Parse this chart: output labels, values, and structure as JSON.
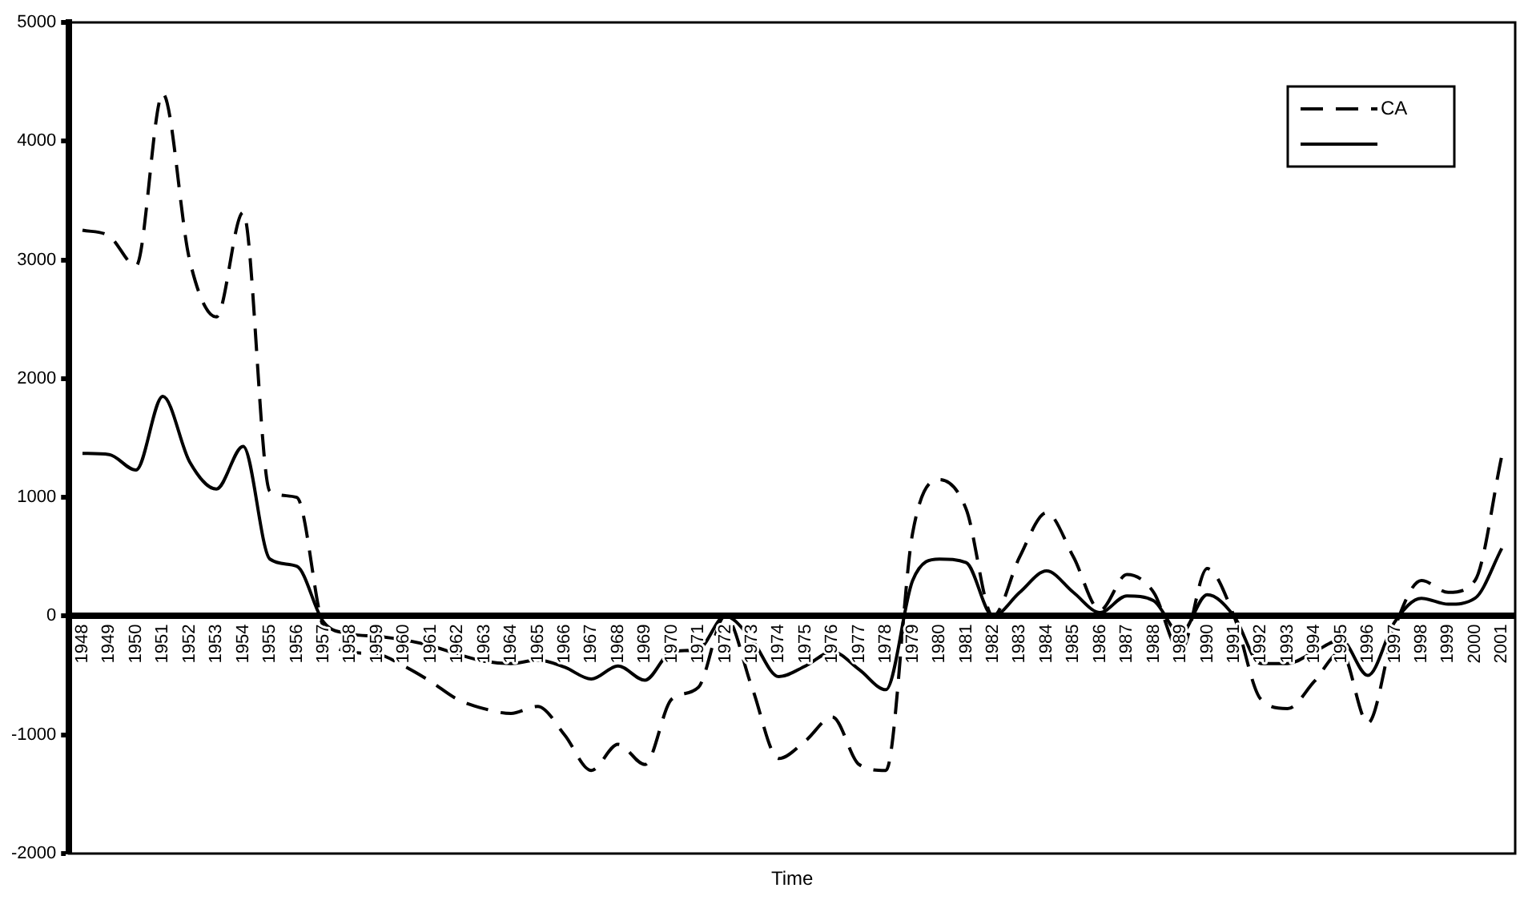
{
  "chart_data": {
    "type": "line",
    "xlabel": "Time",
    "categories": [
      "1948",
      "1949",
      "1950",
      "1951",
      "1952",
      "1953",
      "1954",
      "1955",
      "1956",
      "1957",
      "1958",
      "1959",
      "1960",
      "1961",
      "1962",
      "1963",
      "1964",
      "1965",
      "1966",
      "1967",
      "1968",
      "1969",
      "1970",
      "1971",
      "1972",
      "1973",
      "1974",
      "1975",
      "1976",
      "1977",
      "1978",
      "1979",
      "1980",
      "1981",
      "1982",
      "1983",
      "1984",
      "1985",
      "1986",
      "1987",
      "1988",
      "1989",
      "1990",
      "1991",
      "1992",
      "1993",
      "1994",
      "1995",
      "1996",
      "1997",
      "1998",
      "1999",
      "2000",
      "2001"
    ],
    "series": [
      {
        "name": "CA",
        "color": "#000000",
        "line_style": "dashed",
        "values": [
          3250,
          3200,
          2950,
          4400,
          3000,
          2520,
          3400,
          1050,
          1000,
          -100,
          -300,
          -320,
          -420,
          -550,
          -700,
          -780,
          -820,
          -760,
          -1000,
          -1300,
          -1080,
          -1250,
          -700,
          -600,
          0,
          -600,
          -1200,
          -1050,
          -850,
          -1250,
          -1300,
          700,
          1150,
          900,
          0,
          500,
          870,
          500,
          50,
          350,
          200,
          -300,
          400,
          0,
          -700,
          -780,
          -550,
          -300,
          -900,
          -100,
          300,
          200,
          300,
          1350
        ]
      },
      {
        "color": "#000000",
        "line_style": "solid",
        "values": [
          1370,
          1360,
          1230,
          1850,
          1300,
          1070,
          1430,
          480,
          420,
          -50,
          -150,
          -170,
          -200,
          -250,
          -320,
          -380,
          -400,
          -370,
          -430,
          -530,
          -420,
          -540,
          -300,
          -280,
          0,
          -200,
          -510,
          -420,
          -300,
          -450,
          -620,
          300,
          480,
          450,
          0,
          200,
          380,
          200,
          30,
          170,
          130,
          -150,
          180,
          0,
          -400,
          -400,
          -300,
          -200,
          -500,
          -50,
          150,
          100,
          150,
          570
        ]
      }
    ],
    "ylim": [
      -2000,
      5000
    ],
    "yticks": [
      -2000,
      -1000,
      0,
      1000,
      2000,
      3000,
      4000,
      5000
    ],
    "grid": false,
    "legend": "top right",
    "marker": "none"
  }
}
